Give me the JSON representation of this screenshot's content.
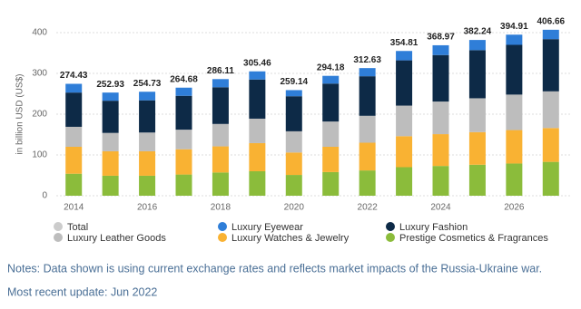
{
  "chart_data": {
    "type": "bar",
    "stacked": true,
    "y_label": "in billion USD (US$)",
    "categories": [
      2014,
      null,
      2016,
      null,
      2018,
      null,
      2020,
      null,
      2022,
      null,
      2024,
      null,
      2026,
      null
    ],
    "ylim": [
      0,
      400
    ],
    "yticks": [
      0,
      100,
      200,
      300,
      400
    ],
    "grid": true,
    "series": [
      {
        "name": "Total",
        "color": "#cccccc",
        "hidden": true,
        "values": [
          274.43,
          252.93,
          254.73,
          264.68,
          286.11,
          305.46,
          259.14,
          294.18,
          312.63,
          354.81,
          368.97,
          382.24,
          394.91,
          406.66
        ]
      },
      {
        "name": "Luxury Eyewear",
        "color": "#2f7ed8",
        "values": [
          21.43,
          20,
          21,
          20,
          20,
          20,
          15,
          19,
          20,
          23,
          24,
          25,
          25,
          23
        ]
      },
      {
        "name": "Luxury Fashion",
        "color": "#0d2a47",
        "values": [
          84,
          79,
          79,
          83,
          90,
          96,
          86,
          93,
          97,
          111,
          114,
          118,
          122,
          128
        ]
      },
      {
        "name": "Luxury Leather Goods",
        "color": "#bdbdbd",
        "values": [
          49,
          45,
          46,
          48,
          55,
          60,
          52,
          62,
          66,
          75,
          80,
          83,
          87,
          90
        ]
      },
      {
        "name": "Luxury Watches & Jewelry",
        "color": "#f9b233",
        "values": [
          66,
          60,
          60,
          62,
          64,
          69,
          55,
          62,
          68,
          76,
          78,
          80,
          82,
          83
        ]
      },
      {
        "name": "Prestige Cosmetics & Fragrances",
        "color": "#8bbc3b",
        "values": [
          54,
          49,
          49,
          52,
          57,
          60,
          51,
          58,
          62,
          70,
          73,
          76,
          79,
          83
        ]
      }
    ]
  },
  "notes": [
    "Notes: Data shown is using current exchange rates and reflects market impacts of the Russia-Ukraine war.",
    "Most recent update: Jun 2022"
  ]
}
